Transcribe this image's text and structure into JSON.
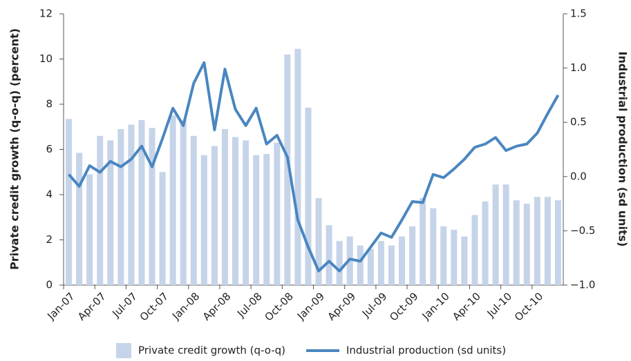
{
  "chart_data": {
    "type": "combo",
    "categories": [
      "Jan-07",
      null,
      null,
      "Apr-07",
      null,
      null,
      "Jul-07",
      null,
      null,
      "Oct-07",
      null,
      null,
      "Jan-08",
      null,
      null,
      "Apr-08",
      null,
      null,
      "Jul-08",
      null,
      null,
      "Oct-08",
      null,
      null,
      "Jan-09",
      null,
      null,
      "Apr-09",
      null,
      null,
      "Jul-09",
      null,
      null,
      "Oct-09",
      null,
      null,
      "Jan-10",
      null,
      null,
      "Apr-10",
      null,
      null,
      "Jul-10",
      null,
      null,
      "Oct-10",
      null,
      null
    ],
    "series": [
      {
        "name": "Private credit growth (q-o-q)",
        "type": "bar",
        "color": "#c6d4ea",
        "values": [
          7.35,
          5.85,
          4.9,
          6.6,
          6.4,
          6.9,
          7.1,
          7.3,
          6.95,
          5.0,
          7.5,
          7.3,
          6.6,
          5.75,
          6.15,
          6.9,
          6.55,
          6.4,
          5.75,
          5.8,
          6.3,
          10.2,
          10.45,
          7.85,
          3.85,
          2.65,
          1.95,
          2.15,
          1.75,
          1.6,
          1.95,
          1.75,
          2.15,
          2.6,
          3.85,
          3.4,
          2.6,
          2.45,
          2.15,
          3.1,
          3.7,
          4.45,
          4.45,
          3.75,
          3.6,
          3.9,
          3.9,
          3.75
        ]
      },
      {
        "name": "Industrial production (sd units)",
        "type": "line",
        "axis": "y2",
        "color": "#4a86c0",
        "values": [
          0.02,
          -0.09,
          0.1,
          0.04,
          0.14,
          0.09,
          0.16,
          0.28,
          0.09,
          0.35,
          0.63,
          0.47,
          0.86,
          1.05,
          0.43,
          0.99,
          0.62,
          0.47,
          0.63,
          0.3,
          0.38,
          0.18,
          -0.4,
          -0.65,
          -0.87,
          -0.78,
          -0.87,
          -0.76,
          -0.78,
          -0.65,
          -0.52,
          -0.56,
          -0.4,
          -0.23,
          -0.24,
          0.02,
          -0.01,
          0.07,
          0.16,
          0.27,
          0.3,
          0.36,
          0.24,
          0.28,
          0.3,
          0.4,
          0.58,
          0.75
        ]
      }
    ],
    "y_label": "Private credit growth (q-o-q) (percent)",
    "y2_label": "Industrial production (sd units)",
    "ylim": [
      0,
      12
    ],
    "yticks": [
      0,
      2,
      4,
      6,
      8,
      10,
      12
    ],
    "y2lim": [
      -1.0,
      1.5
    ],
    "y2ticks": [
      {
        "value": -1.0,
        "label": "−1.0"
      },
      {
        "value": -0.5,
        "label": "−0.5"
      },
      {
        "value": 0.0,
        "label": "0.0"
      },
      0.5,
      {
        "value": 1.0,
        "label": "1.0"
      },
      1.5
    ],
    "legend": "bottom"
  }
}
